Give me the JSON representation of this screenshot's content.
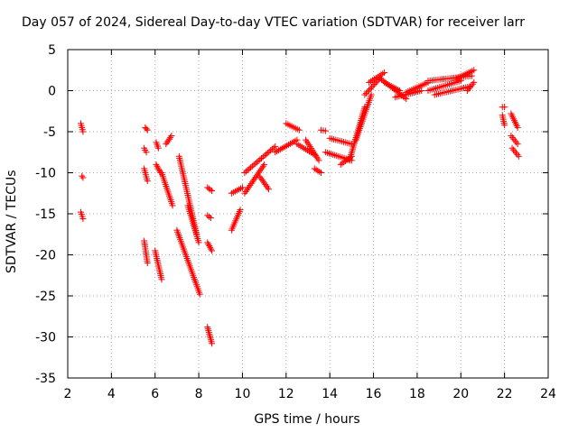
{
  "chart_data": {
    "type": "scatter",
    "title": "Day 057 of 2024, Sidereal Day-to-day VTEC variation (SDTVAR) for receiver larr",
    "xlabel": "GPS time / hours",
    "ylabel": "SDTVAR / TECUs",
    "xlim": [
      2,
      24
    ],
    "ylim": [
      -35,
      5
    ],
    "xticks": [
      2,
      4,
      6,
      8,
      10,
      12,
      14,
      16,
      18,
      20,
      22,
      24
    ],
    "yticks": [
      5,
      0,
      -5,
      -10,
      -15,
      -20,
      -25,
      -30,
      -35
    ],
    "grid": true,
    "marker": "+",
    "color": "#ff0000",
    "series": [
      {
        "name": "SDTVAR",
        "segments": [
          {
            "x": [
              2.6,
              2.7
            ],
            "y": [
              -4.0,
              -5.0
            ]
          },
          {
            "x": [
              2.65,
              2.7
            ],
            "y": [
              -10.4,
              -10.6
            ]
          },
          {
            "x": [
              2.6,
              2.7
            ],
            "y": [
              -14.8,
              -15.6
            ]
          },
          {
            "x": [
              5.55,
              5.65
            ],
            "y": [
              -4.5,
              -4.8
            ]
          },
          {
            "x": [
              5.5,
              5.6
            ],
            "y": [
              -7.0,
              -7.5
            ]
          },
          {
            "x": [
              5.5,
              5.65
            ],
            "y": [
              -9.5,
              -11.0
            ]
          },
          {
            "x": [
              5.5,
              5.65
            ],
            "y": [
              -18.3,
              -21.0
            ]
          },
          {
            "x": [
              6.05,
              6.15
            ],
            "y": [
              -6.3,
              -7.0
            ]
          },
          {
            "x": [
              6.05,
              6.25
            ],
            "y": [
              -9.0,
              -10.0
            ]
          },
          {
            "x": [
              6.0,
              6.3
            ],
            "y": [
              -19.5,
              -23.0
            ]
          },
          {
            "x": [
              6.3,
              6.8
            ],
            "y": [
              -10.0,
              -14.0
            ]
          },
          {
            "x": [
              6.5,
              6.75
            ],
            "y": [
              -6.5,
              -5.5
            ]
          },
          {
            "x": [
              7.1,
              7.9
            ],
            "y": [
              -8.0,
              -17.5
            ]
          },
          {
            "x": [
              7.0,
              8.05
            ],
            "y": [
              -17.0,
              -24.8
            ]
          },
          {
            "x": [
              7.5,
              8.0
            ],
            "y": [
              -14.0,
              -18.5
            ]
          },
          {
            "x": [
              8.4,
              8.6
            ],
            "y": [
              -11.8,
              -12.2
            ]
          },
          {
            "x": [
              8.4,
              8.55
            ],
            "y": [
              -15.2,
              -15.5
            ]
          },
          {
            "x": [
              8.4,
              8.6
            ],
            "y": [
              -18.5,
              -19.5
            ]
          },
          {
            "x": [
              8.4,
              8.6
            ],
            "y": [
              -28.8,
              -30.8
            ]
          },
          {
            "x": [
              9.5,
              9.9
            ],
            "y": [
              -17.0,
              -14.5
            ]
          },
          {
            "x": [
              9.5,
              10.0
            ],
            "y": [
              -12.5,
              -11.8
            ]
          },
          {
            "x": [
              10.1,
              11.0
            ],
            "y": [
              -12.5,
              -9.0
            ]
          },
          {
            "x": [
              10.1,
              11.5
            ],
            "y": [
              -10.0,
              -6.8
            ]
          },
          {
            "x": [
              10.8,
              11.2
            ],
            "y": [
              -10.5,
              -12.0
            ]
          },
          {
            "x": [
              11.5,
              12.5
            ],
            "y": [
              -7.5,
              -6.0
            ]
          },
          {
            "x": [
              12.0,
              12.6
            ],
            "y": [
              -4.0,
              -4.8
            ]
          },
          {
            "x": [
              12.5,
              13.3
            ],
            "y": [
              -6.5,
              -7.8
            ]
          },
          {
            "x": [
              12.9,
              13.5
            ],
            "y": [
              -6.0,
              -8.5
            ]
          },
          {
            "x": [
              13.3,
              13.6
            ],
            "y": [
              -9.5,
              -10.0
            ]
          },
          {
            "x": [
              13.6,
              13.8
            ],
            "y": [
              -4.8,
              -4.9
            ]
          },
          {
            "x": [
              13.8,
              15.0
            ],
            "y": [
              -7.5,
              -8.5
            ]
          },
          {
            "x": [
              14.0,
              15.0
            ],
            "y": [
              -5.8,
              -6.5
            ]
          },
          {
            "x": [
              14.5,
              15.0
            ],
            "y": [
              -9.0,
              -8.0
            ]
          },
          {
            "x": [
              14.9,
              15.6
            ],
            "y": [
              -8.5,
              -2.0
            ]
          },
          {
            "x": [
              15.2,
              15.9
            ],
            "y": [
              -6.0,
              -0.5
            ]
          },
          {
            "x": [
              15.6,
              16.3
            ],
            "y": [
              -0.5,
              1.5
            ]
          },
          {
            "x": [
              15.8,
              16.5
            ],
            "y": [
              1.0,
              2.2
            ]
          },
          {
            "x": [
              16.3,
              17.5
            ],
            "y": [
              1.5,
              -1.0
            ]
          },
          {
            "x": [
              16.5,
              17.2
            ],
            "y": [
              1.0,
              0.0
            ]
          },
          {
            "x": [
              17.0,
              18.2
            ],
            "y": [
              -0.8,
              0.0
            ]
          },
          {
            "x": [
              17.5,
              18.5
            ],
            "y": [
              -0.2,
              1.0
            ]
          },
          {
            "x": [
              18.5,
              20.0
            ],
            "y": [
              0.0,
              1.2
            ]
          },
          {
            "x": [
              18.5,
              20.5
            ],
            "y": [
              1.2,
              1.8
            ]
          },
          {
            "x": [
              18.8,
              20.4
            ],
            "y": [
              -0.5,
              0.5
            ]
          },
          {
            "x": [
              19.8,
              20.6
            ],
            "y": [
              1.5,
              2.5
            ]
          },
          {
            "x": [
              20.3,
              20.6
            ],
            "y": [
              0.0,
              1.0
            ]
          },
          {
            "x": [
              21.9,
              22.0
            ],
            "y": [
              -2.0,
              -2.0
            ]
          },
          {
            "x": [
              21.9,
              22.0
            ],
            "y": [
              -3.0,
              -4.2
            ]
          },
          {
            "x": [
              22.3,
              22.6
            ],
            "y": [
              -2.8,
              -4.5
            ]
          },
          {
            "x": [
              22.3,
              22.6
            ],
            "y": [
              -5.5,
              -6.5
            ]
          },
          {
            "x": [
              22.35,
              22.65
            ],
            "y": [
              -7.0,
              -8.0
            ]
          }
        ]
      }
    ]
  }
}
